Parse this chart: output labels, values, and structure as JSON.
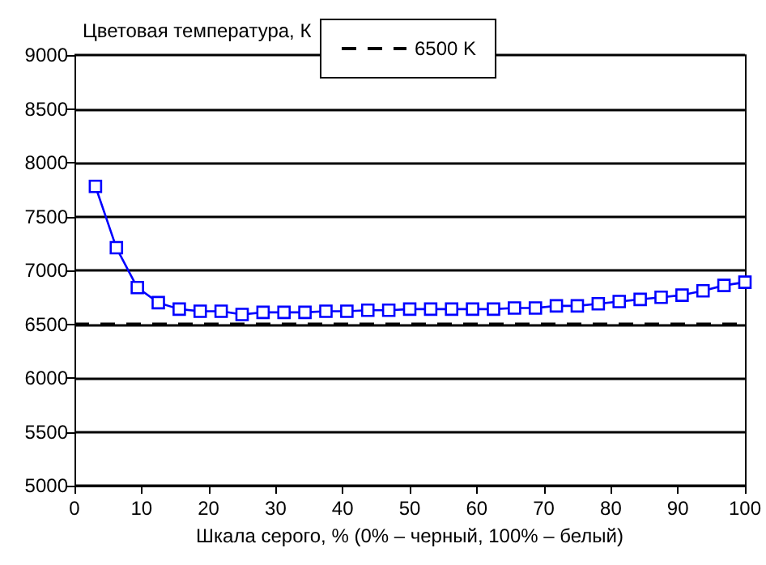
{
  "chart_data": {
    "type": "line",
    "ylabel": "Цветовая температура, К",
    "xlabel": "Шкала серого, % (0% – черный, 100% – белый)",
    "xlim": [
      0,
      100
    ],
    "xticks": [
      0,
      10,
      20,
      30,
      40,
      50,
      60,
      70,
      80,
      90,
      100
    ],
    "ylim": [
      5000,
      9000
    ],
    "yticks": [
      5000,
      5500,
      6000,
      6500,
      7000,
      7500,
      8000,
      8500,
      9000
    ],
    "grid": "y",
    "legend": "top",
    "marker": "square",
    "line_style": "solid",
    "series": [
      {
        "color": "#0000ff",
        "x": [
          3.125,
          6.25,
          9.375,
          12.5,
          15.625,
          18.75,
          21.875,
          25,
          28.125,
          31.25,
          34.375,
          37.5,
          40.625,
          43.75,
          46.875,
          50,
          53.125,
          56.25,
          59.375,
          62.5,
          65.625,
          68.75,
          71.875,
          75,
          78.125,
          81.25,
          84.375,
          87.5,
          90.625,
          93.75,
          96.875,
          100
        ],
        "values": [
          7780,
          7210,
          6840,
          6700,
          6640,
          6620,
          6620,
          6590,
          6610,
          6610,
          6610,
          6620,
          6620,
          6630,
          6630,
          6640,
          6640,
          6640,
          6640,
          6640,
          6650,
          6650,
          6670,
          6670,
          6690,
          6710,
          6730,
          6750,
          6770,
          6810,
          6860,
          6890
        ]
      }
    ],
    "ref_lines": [
      {
        "axis": "y",
        "value": 6500,
        "label": "6500 K",
        "color": "#000000",
        "line_style": "dashed"
      }
    ]
  }
}
